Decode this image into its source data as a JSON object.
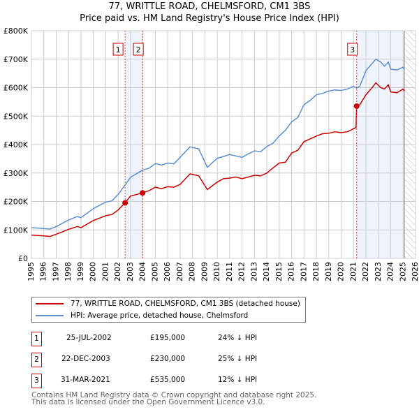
{
  "title": "77, WRITTLE ROAD, CHELMSFORD, CM1 3BS",
  "subtitle": "Price paid vs. HM Land Registry's House Price Index (HPI)",
  "colors": {
    "property": "#cc0000",
    "hpi": "#5b8fd0",
    "shade": "#eef3fc",
    "grid": "#cccccc"
  },
  "chart_data": {
    "type": "line",
    "title": "Price paid vs. HM Land Registry's House Price Index (HPI)",
    "xlim": [
      1995,
      2026
    ],
    "ylim": [
      0,
      800000
    ],
    "x_ticks": [
      "1995",
      "1996",
      "1997",
      "1998",
      "1999",
      "2000",
      "2001",
      "2002",
      "2003",
      "2004",
      "2005",
      "2006",
      "2007",
      "2008",
      "2009",
      "2010",
      "2011",
      "2012",
      "2013",
      "2014",
      "2015",
      "2016",
      "2017",
      "2018",
      "2019",
      "2020",
      "2021",
      "2022",
      "2023",
      "2024",
      "2025",
      "2026"
    ],
    "y_ticks": [
      {
        "v": 0,
        "label": "£0"
      },
      {
        "v": 100000,
        "label": "£100K"
      },
      {
        "v": 200000,
        "label": "£200K"
      },
      {
        "v": 300000,
        "label": "£300K"
      },
      {
        "v": 400000,
        "label": "£400K"
      },
      {
        "v": 500000,
        "label": "£500K"
      },
      {
        "v": 600000,
        "label": "£600K"
      },
      {
        "v": 700000,
        "label": "£700K"
      },
      {
        "v": 800000,
        "label": "£800K"
      }
    ],
    "grid": true,
    "series": [
      {
        "name": "77, WRITTLE ROAD, CHELMSFORD, CM1 3BS (detached house)",
        "x": [
          1995,
          1996,
          1996.5,
          1997,
          1998,
          1998.7,
          1999,
          2000,
          2001,
          2001.5,
          2002,
          2002.56,
          2003,
          2003.97,
          2004.5,
          2005,
          2005.5,
          2006,
          2006.5,
          2007,
          2007.8,
          2008.5,
          2009.2,
          2010,
          2010.5,
          2011,
          2011.5,
          2012,
          2012.5,
          2013,
          2013.5,
          2014,
          2014.5,
          2015,
          2015.5,
          2016,
          2016.5,
          2017,
          2017.5,
          2018,
          2018.5,
          2019,
          2019.5,
          2020,
          2020.5,
          2021.2,
          2021.25,
          2021.5,
          2022,
          2022.5,
          2022.8,
          2023.2,
          2023.5,
          2023.8,
          2024,
          2024.5,
          2025,
          2025.1
        ],
        "values": [
          82000,
          79000,
          77000,
          85000,
          102000,
          112000,
          108000,
          133000,
          150000,
          154000,
          170000,
          195000,
          219000,
          230000,
          238000,
          250000,
          245000,
          252000,
          250000,
          260000,
          297000,
          290000,
          242000,
          268000,
          280000,
          282000,
          286000,
          280000,
          286000,
          292000,
          290000,
          300000,
          318000,
          335000,
          338000,
          370000,
          380000,
          410000,
          420000,
          430000,
          438000,
          440000,
          445000,
          442000,
          445000,
          460000,
          535000,
          540000,
          575000,
          600000,
          617000,
          600000,
          595000,
          610000,
          585000,
          582000,
          595000,
          588000
        ]
      },
      {
        "name": "HPI: Average price, detached house, Chelmsford",
        "x": [
          1995,
          1996,
          1996.5,
          1997,
          1998,
          1998.7,
          1999,
          2000,
          2001,
          2001.5,
          2002,
          2002.56,
          2003,
          2003.97,
          2004.5,
          2005,
          2005.5,
          2006,
          2006.5,
          2007,
          2007.8,
          2008.5,
          2009.2,
          2010,
          2010.5,
          2011,
          2011.5,
          2012,
          2012.5,
          2013,
          2013.5,
          2014,
          2014.5,
          2015,
          2015.5,
          2016,
          2016.5,
          2017,
          2017.5,
          2018,
          2018.5,
          2019,
          2019.5,
          2020,
          2020.5,
          2021,
          2021.25,
          2021.5,
          2022,
          2022.5,
          2022.8,
          2023.2,
          2023.5,
          2023.8,
          2024,
          2024.5,
          2025,
          2025.1
        ],
        "values": [
          108000,
          105000,
          103000,
          112000,
          135000,
          147000,
          143000,
          175000,
          198000,
          202000,
          225000,
          258000,
          285000,
          310000,
          317000,
          333000,
          328000,
          335000,
          332000,
          355000,
          392000,
          385000,
          320000,
          352000,
          358000,
          365000,
          360000,
          355000,
          367000,
          378000,
          375000,
          393000,
          405000,
          430000,
          450000,
          480000,
          495000,
          540000,
          555000,
          575000,
          580000,
          588000,
          592000,
          590000,
          595000,
          605000,
          598000,
          605000,
          660000,
          685000,
          700000,
          690000,
          675000,
          690000,
          665000,
          662000,
          672000,
          665000
        ]
      }
    ],
    "sales": [
      {
        "n": "1",
        "x": 2002.56,
        "value": 195000
      },
      {
        "n": "2",
        "x": 2003.97,
        "value": 230000
      },
      {
        "n": "3",
        "x": 2021.25,
        "value": 535000
      }
    ],
    "forecast_hatched_from": 2025.1
  },
  "legend": {
    "property": "77, WRITTLE ROAD, CHELMSFORD, CM1 3BS (detached house)",
    "hpi": "HPI: Average price, detached house, Chelmsford"
  },
  "transactions": [
    {
      "n": "1",
      "date": "25-JUL-2002",
      "price": "£195,000",
      "delta": "24% ↓ HPI"
    },
    {
      "n": "2",
      "date": "22-DEC-2003",
      "price": "£230,000",
      "delta": "25% ↓ HPI"
    },
    {
      "n": "3",
      "date": "31-MAR-2021",
      "price": "£535,000",
      "delta": "12% ↓ HPI"
    }
  ],
  "footer": {
    "line1": "Contains HM Land Registry data © Crown copyright and database right 2025.",
    "line2": "This data is licensed under the Open Government Licence v3.0."
  }
}
